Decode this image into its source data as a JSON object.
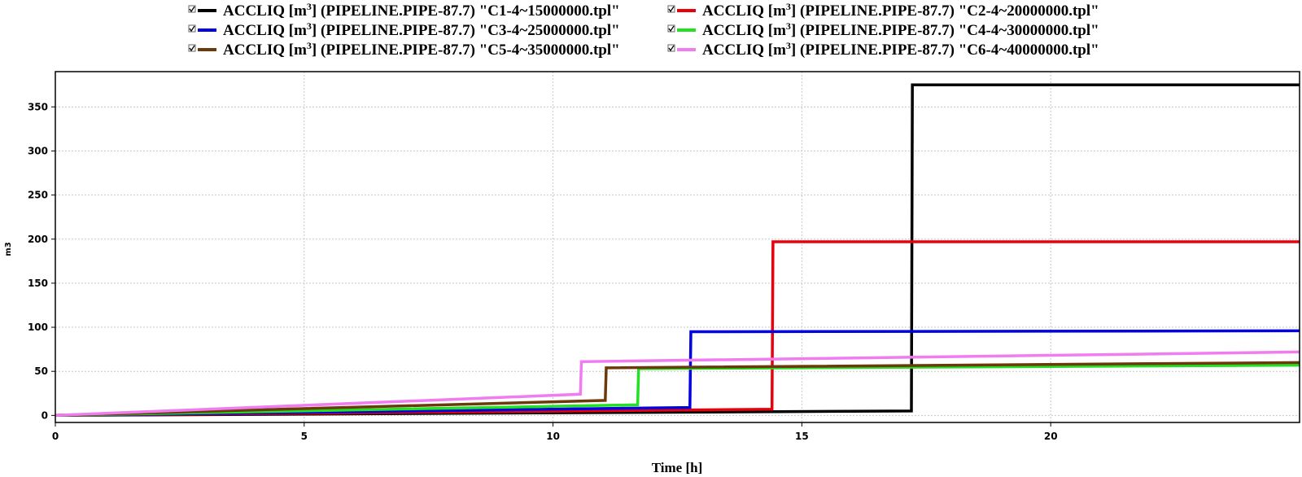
{
  "chart_data": {
    "type": "line",
    "title": "",
    "xlabel": "Time [h]",
    "ylabel": "m3",
    "xlim": [
      0,
      25
    ],
    "ylim": [
      -8,
      390
    ],
    "xticks": [
      0,
      5,
      10,
      15,
      20
    ],
    "yticks": [
      0,
      50,
      100,
      150,
      200,
      250,
      300,
      350
    ],
    "grid": true,
    "legend_position": "top",
    "series": [
      {
        "name_prefix": "ACCLIQ [m",
        "name_sup": "3",
        "name_suffix": "] (PIPELINE.PIPE-87.7) \"C1-4~15000000.tpl\"",
        "color": "#000000",
        "points": [
          [
            0,
            0
          ],
          [
            17.2,
            5
          ],
          [
            17.22,
            375
          ],
          [
            25,
            375
          ]
        ]
      },
      {
        "name_prefix": "ACCLIQ [m",
        "name_sup": "3",
        "name_suffix": "] (PIPELINE.PIPE-87.7) \"C2-4~20000000.tpl\"",
        "color": "#e8000b",
        "points": [
          [
            0,
            0
          ],
          [
            14.4,
            7
          ],
          [
            14.42,
            197
          ],
          [
            25,
            197
          ]
        ]
      },
      {
        "name_prefix": "ACCLIQ [m",
        "name_sup": "3",
        "name_suffix": "] (PIPELINE.PIPE-87.7) \"C3-4~25000000.tpl\"",
        "color": "#0000e0",
        "points": [
          [
            0,
            0
          ],
          [
            12.75,
            9
          ],
          [
            12.77,
            95
          ],
          [
            25,
            96
          ]
        ]
      },
      {
        "name_prefix": "ACCLIQ [m",
        "name_sup": "3",
        "name_suffix": "] (PIPELINE.PIPE-87.7) \"C4-4~30000000.tpl\"",
        "color": "#22e022",
        "points": [
          [
            0,
            0
          ],
          [
            11.7,
            12
          ],
          [
            11.72,
            53
          ],
          [
            25,
            57
          ]
        ]
      },
      {
        "name_prefix": "ACCLIQ [m",
        "name_sup": "3",
        "name_suffix": "] (PIPELINE.PIPE-87.7) \"C5-4~35000000.tpl\"",
        "color": "#6b3a0a",
        "points": [
          [
            0,
            0
          ],
          [
            11.05,
            17
          ],
          [
            11.07,
            54
          ],
          [
            25,
            60
          ]
        ]
      },
      {
        "name_prefix": "ACCLIQ [m",
        "name_sup": "3",
        "name_suffix": "] (PIPELINE.PIPE-87.7) \"C6-4~40000000.tpl\"",
        "color": "#f07cf0",
        "points": [
          [
            0,
            0
          ],
          [
            10.55,
            24
          ],
          [
            10.57,
            61
          ],
          [
            25,
            72
          ]
        ]
      }
    ]
  }
}
